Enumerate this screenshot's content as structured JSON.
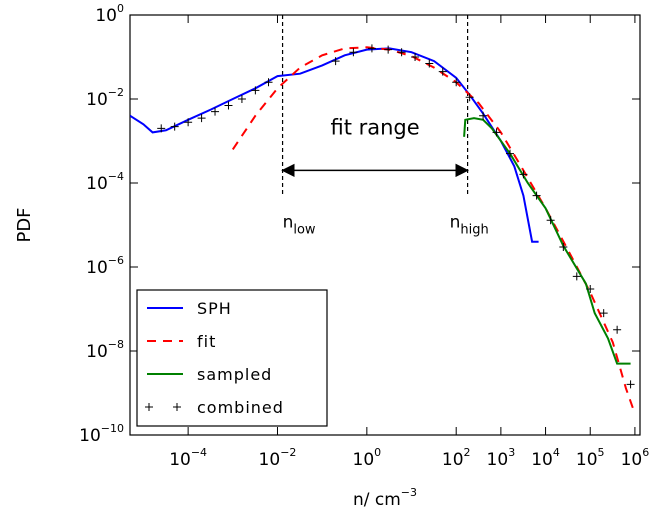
{
  "chart_data": {
    "type": "line",
    "log_x": true,
    "log_y": true,
    "x_label": {
      "base": "n/ cm",
      "exponent": "−3"
    },
    "y_label": "PDF",
    "xlim": [
      5e-06,
      1300000.0
    ],
    "ylim": [
      1e-10,
      1
    ],
    "xticks": [
      {
        "value": 0.0001,
        "base": "10",
        "exponent": "−4"
      },
      {
        "value": 0.01,
        "base": "10",
        "exponent": "−2"
      },
      {
        "value": 1,
        "base": "10",
        "exponent": "0"
      },
      {
        "value": 100,
        "base": "10",
        "exponent": "2"
      },
      {
        "value": 1000,
        "base": "10",
        "exponent": "3"
      },
      {
        "value": 10000,
        "base": "10",
        "exponent": "4"
      },
      {
        "value": 100000,
        "base": "10",
        "exponent": "5"
      },
      {
        "value": 1000000,
        "base": "10",
        "exponent": "6"
      }
    ],
    "yticks": [
      {
        "value": 1e-10,
        "base": "10",
        "exponent": "−10"
      },
      {
        "value": 1e-08,
        "base": "10",
        "exponent": "−8"
      },
      {
        "value": 1e-06,
        "base": "10",
        "exponent": "−6"
      },
      {
        "value": 0.0001,
        "base": "10",
        "exponent": "−4"
      },
      {
        "value": 0.01,
        "base": "10",
        "exponent": "−2"
      },
      {
        "value": 1,
        "base": "10",
        "exponent": "0"
      }
    ],
    "legend": "lower left",
    "fit_range": {
      "label": "fit range",
      "low": 0.013,
      "high": 180,
      "arrow_y": 0.0002,
      "low_label": {
        "base": "n",
        "sub": "low"
      },
      "high_label": {
        "base": "n",
        "sub": "high"
      }
    },
    "series": [
      {
        "name": "SPH",
        "color": "#0000ff",
        "style": "solid",
        "x": [
          5e-06,
          1e-05,
          1.6e-05,
          3.2e-05,
          0.0001,
          0.00032,
          0.001,
          0.0032,
          0.01,
          0.032,
          0.1,
          0.32,
          1,
          3.2,
          10,
          32,
          100,
          200,
          400,
          1000,
          2000,
          3200,
          5000,
          7000
        ],
        "values": [
          0.004,
          0.0025,
          0.0016,
          0.0018,
          0.0032,
          0.0056,
          0.01,
          0.018,
          0.035,
          0.04,
          0.063,
          0.11,
          0.15,
          0.16,
          0.13,
          0.08,
          0.032,
          0.0126,
          0.0045,
          0.001,
          0.00025,
          5e-05,
          4e-06,
          4e-06
        ]
      },
      {
        "name": "fit",
        "color": "#ff0000",
        "style": "dashed",
        "x": [
          0.001,
          0.0032,
          0.01,
          0.032,
          0.1,
          0.32,
          1,
          3.2,
          10,
          32,
          100,
          320,
          1000,
          3200,
          10000.0,
          32000.0,
          100000.0,
          320000.0,
          630000.0,
          1000000.0
        ],
        "values": [
          0.00063,
          0.004,
          0.018,
          0.056,
          0.11,
          0.16,
          0.17,
          0.15,
          0.105,
          0.056,
          0.025,
          0.0079,
          0.0016,
          0.0002,
          2.5e-05,
          2.5e-06,
          2.5e-07,
          1.6e-08,
          1.3e-09,
          3.2e-10
        ]
      },
      {
        "name": "sampled",
        "color": "#008000",
        "style": "solid",
        "x": [
          150,
          160,
          250,
          400,
          630,
          1600,
          4000,
          10000.0,
          25000.0,
          80000.0,
          126000.0,
          250000.0,
          400000.0,
          800000.0
        ],
        "values": [
          0.00126,
          0.0032,
          0.0035,
          0.0032,
          0.002,
          0.0005,
          0.0001,
          2.5e-05,
          3.2e-06,
          4e-07,
          8e-08,
          2e-08,
          5e-09,
          5e-09
        ]
      },
      {
        "name": "combined",
        "color": "#000000",
        "style": "marker",
        "x": [
          2.5e-05,
          5e-05,
          0.0001,
          0.0002,
          0.0004,
          0.0008,
          0.0016,
          0.0032,
          0.0063,
          0.2,
          0.5,
          1.3,
          3,
          6,
          12,
          25,
          50,
          100,
          200,
          400,
          800,
          1600,
          3200,
          6300,
          13000.0,
          25000.0,
          50000.0,
          100000.0,
          200000.0,
          400000.0,
          800000.0
        ],
        "values": [
          0.002,
          0.0022,
          0.0028,
          0.0035,
          0.005,
          0.007,
          0.01,
          0.016,
          0.025,
          0.08,
          0.13,
          0.16,
          0.15,
          0.13,
          0.1,
          0.07,
          0.045,
          0.025,
          0.011,
          0.004,
          0.0016,
          0.0005,
          0.00016,
          5e-05,
          1.3e-05,
          3e-06,
          6e-07,
          3e-07,
          8e-08,
          3.2e-08,
          1.6e-09
        ]
      }
    ]
  }
}
